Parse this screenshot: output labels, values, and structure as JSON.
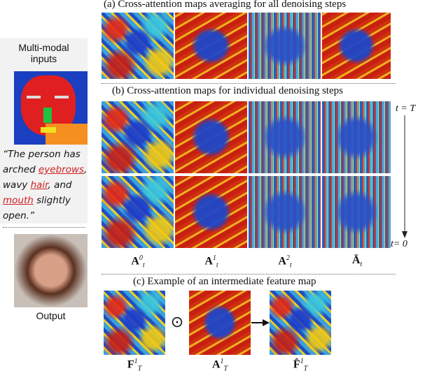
{
  "inputs": {
    "title": "Multi-modal inputs",
    "quote": [
      {
        "text": "“The person has arched ",
        "underlined": false
      },
      {
        "text": "eyebrows",
        "underlined": true
      },
      {
        "text": ", wavy ",
        "underlined": false
      },
      {
        "text": "hair",
        "underlined": true
      },
      {
        "text": ", and ",
        "underlined": false
      },
      {
        "text": "mouth",
        "underlined": true
      },
      {
        "text": " slightly open.”",
        "underlined": false
      }
    ],
    "output_label": "Output"
  },
  "section_a": {
    "title": "(a) Cross-attention maps averaging for all denoising steps"
  },
  "section_b": {
    "title": "(b) Cross-attention maps for individual denoising steps",
    "time_top": "t = T",
    "time_bottom": "t= 0",
    "labels": [
      {
        "base": "A",
        "sup": "0",
        "sub": "t"
      },
      {
        "base": "A",
        "sup": "1",
        "sub": "t"
      },
      {
        "base": "A",
        "sup": "2",
        "sub": "t"
      },
      {
        "base": "Ā",
        "sup": "",
        "sub": "t"
      }
    ]
  },
  "section_c": {
    "title": "(c) Example of an intermediate feature map",
    "operator": "⊙",
    "labels": [
      {
        "base": "F",
        "sup": "1",
        "sub": "T"
      },
      {
        "base": "A",
        "sup": "1",
        "sub": "T"
      },
      {
        "base": "F̂",
        "sup": "1",
        "sub": "T"
      }
    ]
  }
}
